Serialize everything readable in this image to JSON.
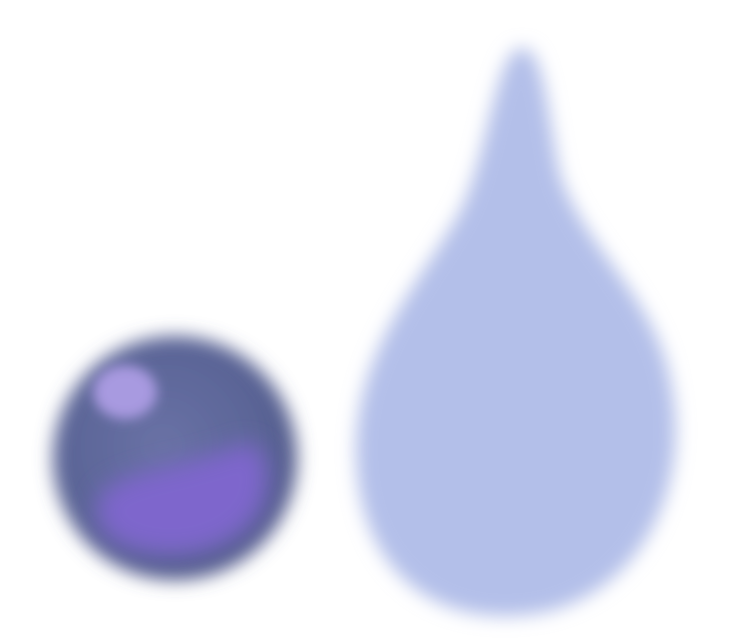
{
  "scene": {
    "background_color": "#ffffff",
    "orb": {
      "icon": "purple-orb-icon",
      "base_color": "#5a6496",
      "inner_color": "#7e66cc",
      "highlight_color": "#a89ae0"
    },
    "drop": {
      "icon": "water-drop-icon",
      "fill_color": "#b3bfe9"
    }
  }
}
